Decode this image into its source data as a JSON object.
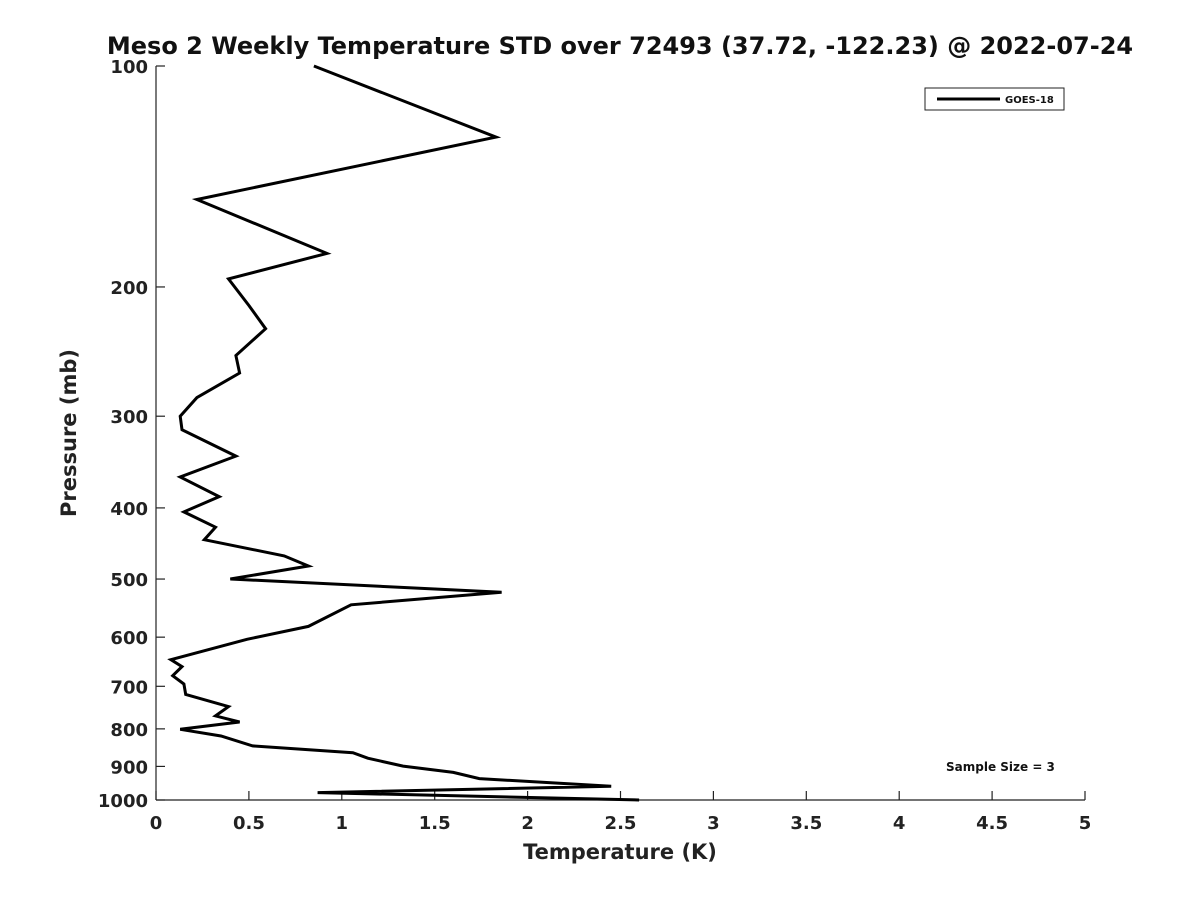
{
  "chart_data": {
    "type": "line",
    "title": "Meso 2 Weekly Temperature STD over 72493 (37.72, -122.23) @ 2022-07-24",
    "xlabel": "Temperature (K)",
    "ylabel": "Pressure (mb)",
    "xlim": [
      0,
      5
    ],
    "ylim": [
      100,
      1000
    ],
    "y_scale": "log",
    "y_reversed": true,
    "x_ticks": [
      "0",
      "0.5",
      "1",
      "1.5",
      "2",
      "2.5",
      "3",
      "3.5",
      "4",
      "4.5",
      "5"
    ],
    "y_ticks": [
      "100",
      "200",
      "300",
      "400",
      "500",
      "600",
      "700",
      "800",
      "900",
      "1000"
    ],
    "grid": false,
    "legend_position": "top-right",
    "annotation": "Sample Size = 3",
    "series": [
      {
        "name": "GOES-18",
        "color": "#000000",
        "x": [
          0.85,
          1.83,
          0.22,
          0.92,
          0.39,
          0.5,
          0.59,
          0.43,
          0.45,
          0.22,
          0.13,
          0.14,
          0.43,
          0.13,
          0.34,
          0.15,
          0.32,
          0.26,
          0.69,
          0.82,
          0.4,
          1.86,
          1.05,
          0.82,
          0.49,
          0.08,
          0.14,
          0.09,
          0.15,
          0.16,
          0.39,
          0.32,
          0.45,
          0.13,
          0.35,
          0.52,
          1.06,
          1.14,
          1.33,
          1.6,
          1.74,
          2.45,
          0.87,
          2.6
        ],
        "y": [
          100,
          125,
          152,
          180,
          195,
          212,
          228,
          248,
          262,
          283,
          300,
          313,
          340,
          363,
          386,
          405,
          425,
          442,
          465,
          480,
          500,
          521,
          542,
          580,
          604,
          644,
          658,
          677,
          695,
          718,
          746,
          768,
          783,
          801,
          818,
          844,
          862,
          877,
          899,
          917,
          935,
          958,
          977,
          1000
        ]
      }
    ]
  }
}
